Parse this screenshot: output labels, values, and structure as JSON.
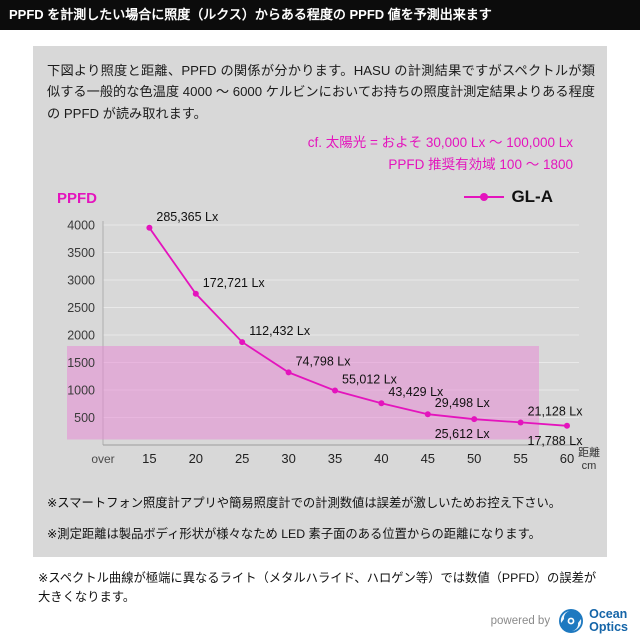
{
  "banner": {
    "text": "PPFD を計測したい場合に照度（ルクス）からある程度の PPFD 値を予測出来ます"
  },
  "intro": {
    "text": "下図より照度と距離、PPFD の関係が分かります。HASU の計測結果ですがスペクトルが類似する一般的な色温度 4000 ～ 6000 ケルビンにおいてお持ちの照度計測定結果よりある程度の PPFD が読み取れます。"
  },
  "reference": {
    "sunlight": "cf. 太陽光 = およそ 30,000 Lx ～ 100,000 Lx",
    "recommended": "PPFD 推奨有効域 100 ～ 1800"
  },
  "chart_header": {
    "y_axis_title": "PPFD",
    "legend_label": "GL-A"
  },
  "chart_data": {
    "type": "line",
    "title": "",
    "ylabel": "PPFD",
    "xlabel": "距離 cm",
    "ylim": [
      0,
      4000
    ],
    "y_ticks": [
      500,
      1000,
      1500,
      2000,
      2500,
      3000,
      3500,
      4000
    ],
    "x_first_label": "over",
    "x_unit_top": "距離",
    "x_unit_bottom": "cm",
    "grid": true,
    "legend_position": "top-right",
    "series_name": "GL-A",
    "accent_color": "#e414bd",
    "band_color": "rgba(231,132,211,0.5)",
    "recommended_band": {
      "from": 100,
      "to": 1800
    },
    "points": [
      {
        "distance_cm": 15,
        "lux_label": "285,365 Lx",
        "ppfd_est": 3950,
        "label_pos": "up"
      },
      {
        "distance_cm": 20,
        "lux_label": "172,721 Lx",
        "ppfd_est": 2750,
        "label_pos": "up"
      },
      {
        "distance_cm": 25,
        "lux_label": "112,432 Lx",
        "ppfd_est": 1870,
        "label_pos": "up"
      },
      {
        "distance_cm": 30,
        "lux_label": "74,798 Lx",
        "ppfd_est": 1320,
        "label_pos": "up"
      },
      {
        "distance_cm": 35,
        "lux_label": "55,012 Lx",
        "ppfd_est": 990,
        "label_pos": "up"
      },
      {
        "distance_cm": 40,
        "lux_label": "43,429 Lx",
        "ppfd_est": 760,
        "label_pos": "up"
      },
      {
        "distance_cm": 45,
        "lux_label": "29,498 Lx",
        "ppfd_est": 560,
        "label_pos": "up"
      },
      {
        "distance_cm": 50,
        "lux_label": "25,612 Lx",
        "ppfd_est": 470,
        "label_pos": "down"
      },
      {
        "distance_cm": 55,
        "lux_label": "21,128 Lx",
        "ppfd_est": 410,
        "label_pos": "up"
      },
      {
        "distance_cm": 60,
        "lux_label": "17,788 Lx",
        "ppfd_est": 350,
        "label_pos": "down"
      }
    ]
  },
  "notes": {
    "note1": "※スマートフォン照度計アプリや簡易照度計での計測数値は誤差が激しいためお控え下さい。",
    "note2": "※測定距離は製品ボディ形状が様々なため LED 素子面のある位置からの距離になります。",
    "note3": "※スペクトル曲線が極端に異なるライト（メタルハライド、ハロゲン等）では数値（PPFD）の誤差が大きくなります。"
  },
  "footer": {
    "powered_by": "powered by",
    "brand_line1": "Ocean",
    "brand_line2": "Optics"
  }
}
